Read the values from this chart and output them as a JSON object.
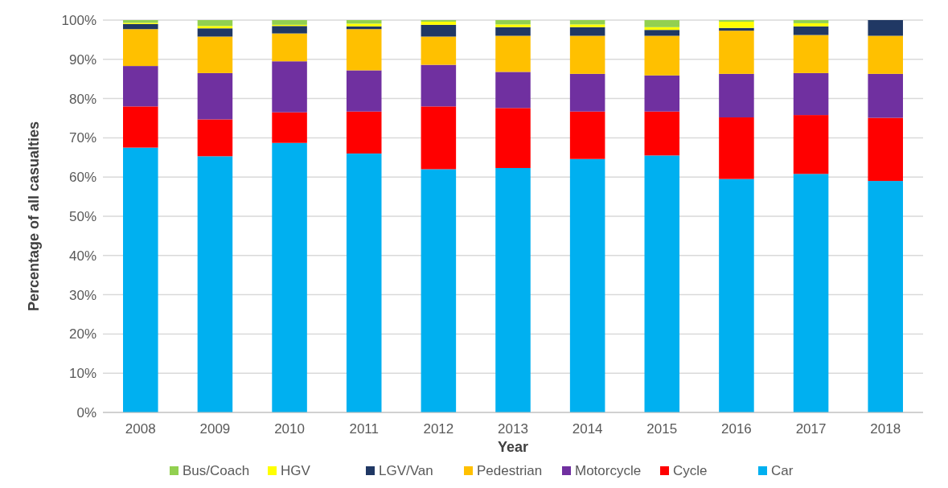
{
  "chart_data": {
    "type": "bar",
    "stacked": true,
    "xlabel": "Year",
    "ylabel": "Percentage of all casualties",
    "categories": [
      "2008",
      "2009",
      "2010",
      "2011",
      "2012",
      "2013",
      "2014",
      "2015",
      "2016",
      "2017",
      "2018"
    ],
    "series": [
      {
        "name": "Car",
        "color": "#00b0f0",
        "values": [
          67.5,
          65.3,
          68.7,
          66,
          62,
          62.3,
          64.6,
          65.5,
          59.5,
          60.8,
          59
        ]
      },
      {
        "name": "Cycle",
        "color": "#ff0000",
        "values": [
          10.5,
          9.4,
          7.8,
          10.7,
          16,
          15.3,
          12.1,
          11.2,
          15.7,
          15,
          16.1
        ]
      },
      {
        "name": "Motorcycle",
        "color": "#7030a0",
        "values": [
          10.3,
          11.8,
          13,
          10.5,
          10.6,
          9.2,
          9.6,
          9.2,
          11.1,
          10.7,
          11.2
        ]
      },
      {
        "name": "Pedestrian",
        "color": "#ffc000",
        "values": [
          9.4,
          9.3,
          7.1,
          10.5,
          7.2,
          9.2,
          9.7,
          10.1,
          11,
          9.7,
          9.7
        ]
      },
      {
        "name": "LGV/Van",
        "color": "#203864",
        "values": [
          1.3,
          2.1,
          1.9,
          0.7,
          3,
          2.2,
          2.2,
          1.5,
          0.7,
          2.2,
          4
        ]
      },
      {
        "name": "HGV",
        "color": "#ffff00",
        "values": [
          0.3,
          0.6,
          0.3,
          0.7,
          0.8,
          0.7,
          0.7,
          0.7,
          1.6,
          0.8,
          0
        ]
      },
      {
        "name": "Bus/Coach",
        "color": "#92d050",
        "values": [
          0.7,
          1.5,
          1.2,
          0.9,
          0.4,
          1.1,
          1.1,
          1.8,
          0.4,
          0.8,
          0
        ]
      }
    ],
    "ylim": [
      0,
      100
    ],
    "yticks": [
      {
        "value": 0,
        "label": "0%"
      },
      {
        "value": 10,
        "label": "10%"
      },
      {
        "value": 20,
        "label": "20%"
      },
      {
        "value": 30,
        "label": "30%"
      },
      {
        "value": 40,
        "label": "40%"
      },
      {
        "value": 50,
        "label": "50%"
      },
      {
        "value": 60,
        "label": "60%"
      },
      {
        "value": 70,
        "label": "70%"
      },
      {
        "value": 80,
        "label": "80%"
      },
      {
        "value": 90,
        "label": "90%"
      },
      {
        "value": 100,
        "label": "100%"
      }
    ],
    "grid": "y",
    "legend": "bottom"
  }
}
